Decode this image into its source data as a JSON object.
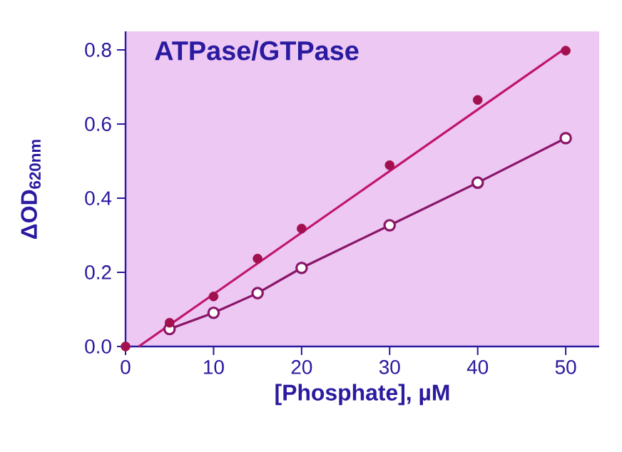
{
  "chart_data": {
    "type": "scatter",
    "title": "ATPase/GTPase",
    "xlabel": "[Phosphate], µM",
    "ylabel": "ΔOD$_{620nm}$",
    "xlim": [
      0,
      53.8
    ],
    "ylim": [
      0,
      0.85
    ],
    "xticks": [
      0,
      10,
      20,
      30,
      40,
      50
    ],
    "yticks": [
      {
        "value": 0,
        "label": "0.0"
      },
      0.2,
      0.4,
      0.6,
      0.8
    ],
    "series": [
      {
        "type": "line",
        "marker": "circle",
        "color": "#8a1568",
        "x": [
          5,
          10,
          15,
          20,
          30,
          40,
          50
        ],
        "values": [
          0.047,
          0.091,
          0.144,
          0.212,
          0.327,
          0.442,
          0.562
        ]
      },
      {
        "type": "line",
        "marker": "none",
        "color": "#c0146e",
        "x": [
          1.5,
          50
        ],
        "values": [
          0,
          0.805
        ]
      },
      {
        "marker": "circle",
        "color": "#a3104f",
        "x": [
          0,
          5,
          10,
          15,
          20,
          30,
          40,
          50
        ],
        "values": [
          0,
          0.064,
          0.135,
          0.237,
          0.318,
          0.489,
          0.665,
          0.798
        ]
      }
    ]
  }
}
